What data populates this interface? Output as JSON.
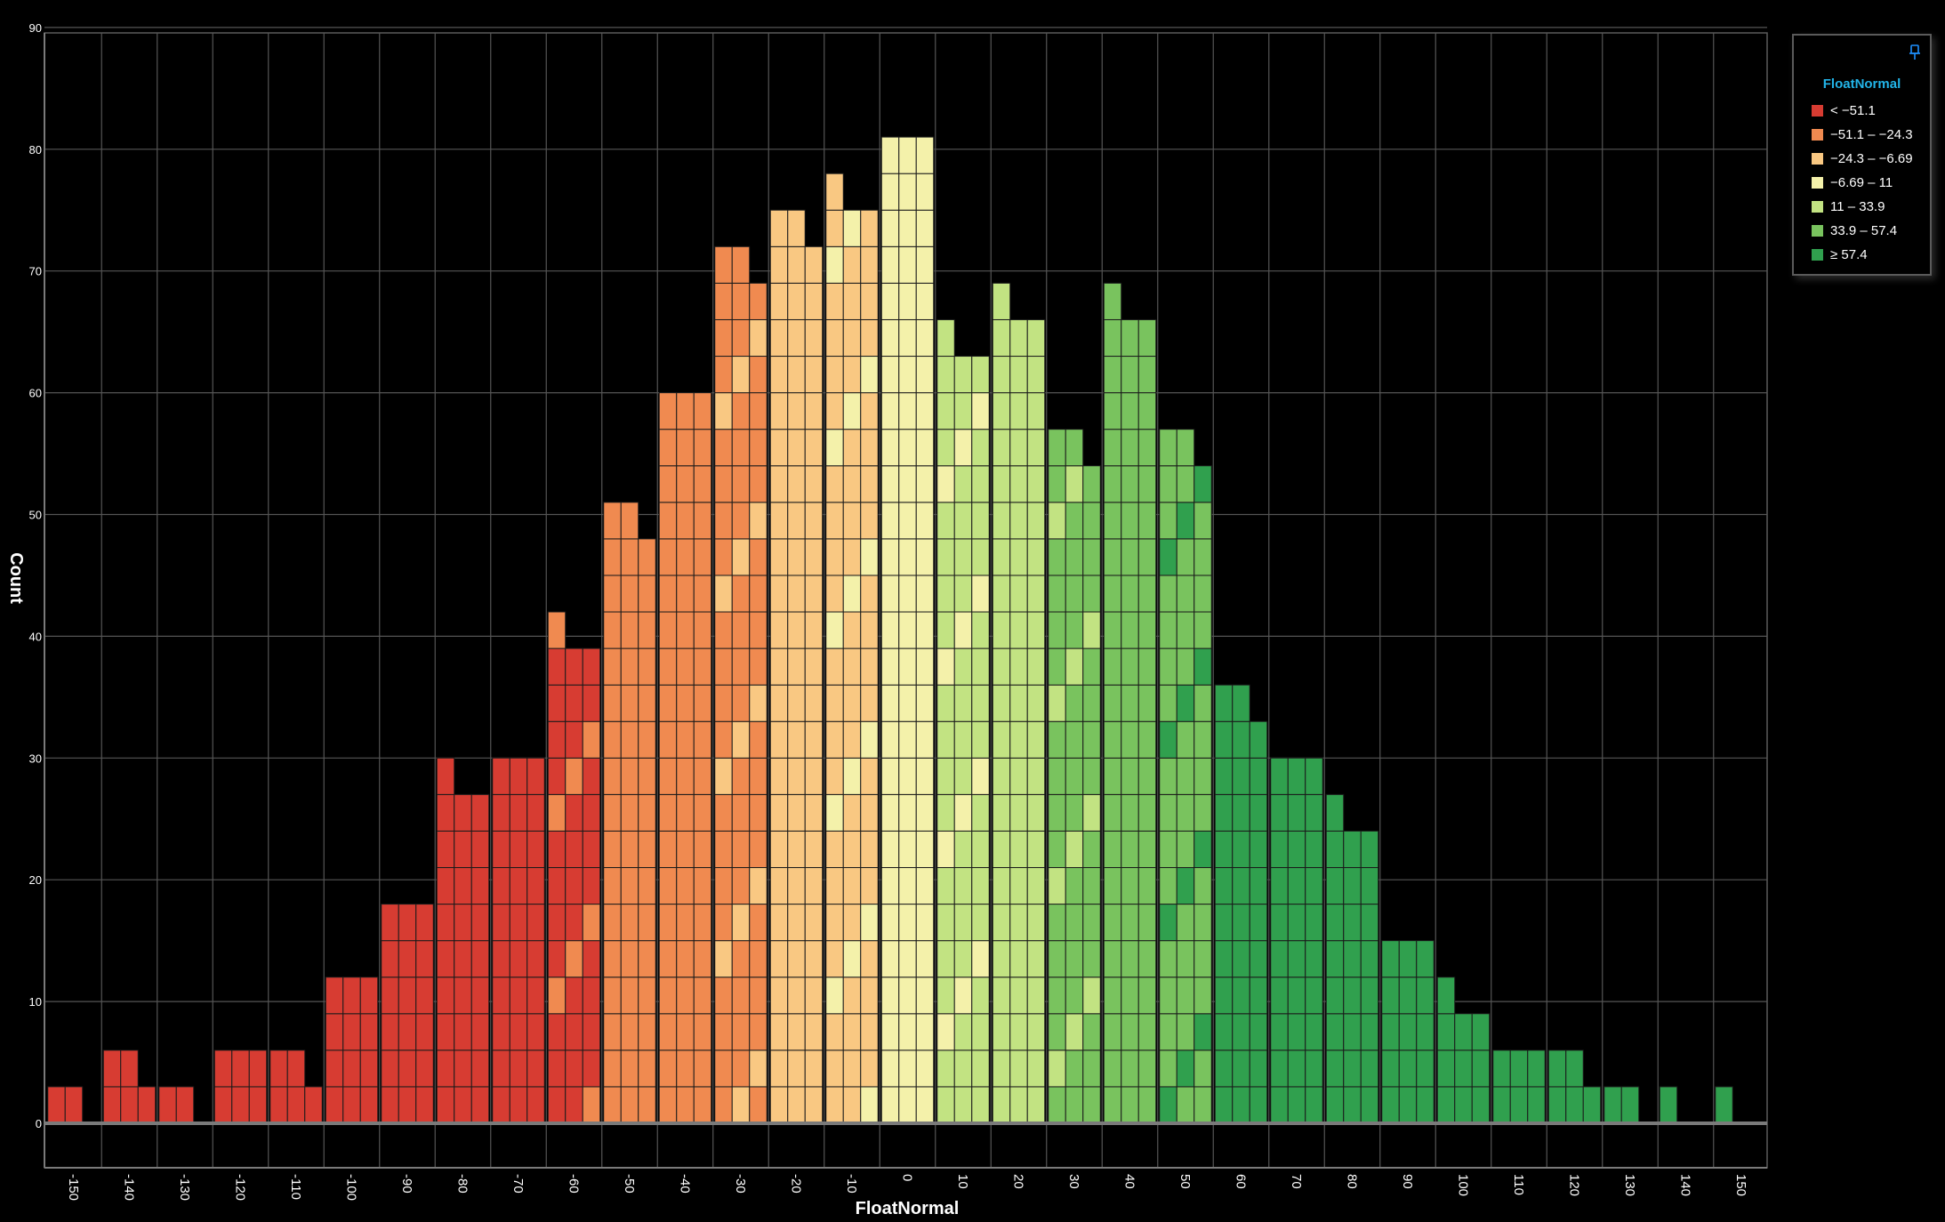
{
  "chart_data": {
    "type": "bar",
    "subtype": "stacked-unit-histogram",
    "xlabel": "FloatNormal",
    "ylabel": "Count",
    "xlim": [
      -155,
      155
    ],
    "ylim": [
      -3.5,
      90
    ],
    "grid": true,
    "legend_position": "top-right",
    "x_ticks": [
      -150,
      -140,
      -130,
      -120,
      -110,
      -100,
      -90,
      -80,
      -70,
      -60,
      -50,
      -40,
      -30,
      -20,
      -10,
      0,
      10,
      20,
      30,
      40,
      50,
      60,
      70,
      80,
      90,
      100,
      110,
      120,
      130,
      140,
      150
    ],
    "y_ticks": [
      0,
      10,
      20,
      30,
      40,
      50,
      60,
      70,
      80,
      90
    ],
    "x_tick_labels": [
      "-150",
      "-140",
      "-130",
      "-120",
      "-110",
      "-100",
      "-90",
      "-80",
      "-70",
      "-60",
      "-50",
      "-40",
      "-30",
      "-20",
      "-10",
      "0",
      "10",
      "20",
      "30",
      "40",
      "50",
      "60",
      "70",
      "80",
      "90",
      "100",
      "110",
      "120",
      "130",
      "140",
      "150"
    ],
    "y_tick_labels": [
      "0",
      "10",
      "20",
      "30",
      "40",
      "50",
      "60",
      "70",
      "80",
      "90"
    ],
    "legend_title": "FloatNormal",
    "series": [
      {
        "name": "< −51.1",
        "color": "#d73c32"
      },
      {
        "name": "−51.1 – −24.3",
        "color": "#f08a50"
      },
      {
        "name": "−24.3 – −6.69",
        "color": "#f9c882"
      },
      {
        "name": "−6.69 – 11",
        "color": "#f4f1aa"
      },
      {
        "name": "11 – 33.9",
        "color": "#c2e382"
      },
      {
        "name": "33.9 – 57.4",
        "color": "#79c35e"
      },
      {
        "name": "≥ 57.4",
        "color": "#30a04e"
      }
    ],
    "bins": [
      {
        "center": -150,
        "values": [
          3,
          3,
          0
        ],
        "class": 0
      },
      {
        "center": -140,
        "values": [
          6,
          6,
          3
        ],
        "class": 0
      },
      {
        "center": -130,
        "values": [
          3,
          3,
          0
        ],
        "class": 0
      },
      {
        "center": -120,
        "values": [
          6,
          6,
          6
        ],
        "class": 0
      },
      {
        "center": -110,
        "values": [
          6,
          6,
          3
        ],
        "class": 0
      },
      {
        "center": -100,
        "values": [
          12,
          12,
          12
        ],
        "class": 0
      },
      {
        "center": -90,
        "values": [
          18,
          18,
          18
        ],
        "class": 0
      },
      {
        "center": -80,
        "values": [
          30,
          27,
          27
        ],
        "class": 0
      },
      {
        "center": -70,
        "values": [
          30,
          30,
          30
        ],
        "class": 0
      },
      {
        "center": -60,
        "values": [
          42,
          39,
          39
        ],
        "class": 0,
        "mix": 1
      },
      {
        "center": -50,
        "values": [
          51,
          51,
          48
        ],
        "class": 1
      },
      {
        "center": -40,
        "values": [
          60,
          60,
          60
        ],
        "class": 1
      },
      {
        "center": -30,
        "values": [
          72,
          72,
          69
        ],
        "class": 1,
        "mix": 2
      },
      {
        "center": -20,
        "values": [
          75,
          75,
          72
        ],
        "class": 2
      },
      {
        "center": -10,
        "values": [
          78,
          75,
          75
        ],
        "class": 2,
        "mix": 3
      },
      {
        "center": 0,
        "values": [
          81,
          81,
          81
        ],
        "class": 3
      },
      {
        "center": 10,
        "values": [
          66,
          63,
          63
        ],
        "class": 4,
        "mix": 3
      },
      {
        "center": 20,
        "values": [
          69,
          66,
          66
        ],
        "class": 4
      },
      {
        "center": 30,
        "values": [
          57,
          57,
          54
        ],
        "class": 5,
        "mix": 4
      },
      {
        "center": 40,
        "values": [
          69,
          66,
          66
        ],
        "class": 5
      },
      {
        "center": 50,
        "values": [
          57,
          57,
          54
        ],
        "class": 5,
        "mix": 6
      },
      {
        "center": 60,
        "values": [
          36,
          36,
          33
        ],
        "class": 6
      },
      {
        "center": 70,
        "values": [
          30,
          30,
          30
        ],
        "class": 6
      },
      {
        "center": 80,
        "values": [
          27,
          24,
          24
        ],
        "class": 6
      },
      {
        "center": 90,
        "values": [
          15,
          15,
          15
        ],
        "class": 6
      },
      {
        "center": 100,
        "values": [
          12,
          9,
          9
        ],
        "class": 6
      },
      {
        "center": 110,
        "values": [
          6,
          6,
          6
        ],
        "class": 6
      },
      {
        "center": 120,
        "values": [
          6,
          6,
          3
        ],
        "class": 6
      },
      {
        "center": 130,
        "values": [
          3,
          3,
          0
        ],
        "class": 6
      },
      {
        "center": 140,
        "values": [
          3,
          0,
          0
        ],
        "class": 6
      },
      {
        "center": 150,
        "values": [
          3,
          0,
          0
        ],
        "class": 6
      }
    ]
  }
}
